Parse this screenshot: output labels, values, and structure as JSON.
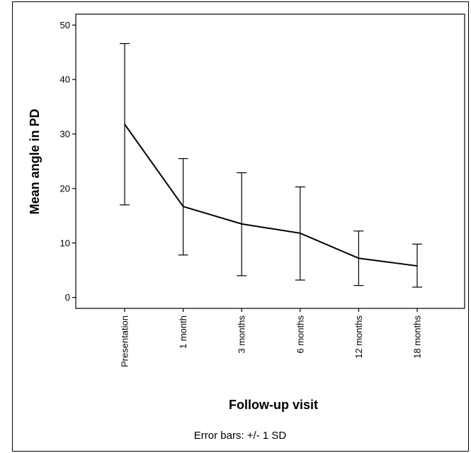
{
  "chart_data": {
    "type": "line",
    "x": [
      "Presentation",
      "1 month",
      "3 months",
      "6 months",
      "12 months",
      "18 months"
    ],
    "series": [
      {
        "values": [
          31.8,
          16.7,
          13.5,
          11.8,
          7.2,
          5.8
        ],
        "error_low": [
          17.0,
          7.8,
          4.0,
          3.2,
          2.2,
          1.9
        ],
        "error_high": [
          46.6,
          25.5,
          22.9,
          20.3,
          12.2,
          9.8
        ]
      }
    ],
    "ylabel": "Mean angle in PD",
    "xlabel": "Follow-up visit",
    "ylim": [
      -2,
      52
    ],
    "yticks": [
      0,
      10,
      20,
      30,
      40,
      50
    ],
    "grid": false,
    "legend": "none",
    "footnote": "Error bars: +/- 1 SD",
    "colors": {
      "line": "#000000",
      "background": "#ffffff"
    }
  }
}
